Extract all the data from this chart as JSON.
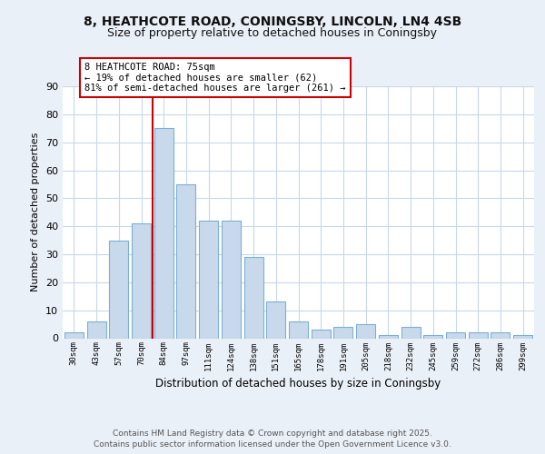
{
  "title1": "8, HEATHCOTE ROAD, CONINGSBY, LINCOLN, LN4 4SB",
  "title2": "Size of property relative to detached houses in Coningsby",
  "xlabel": "Distribution of detached houses by size in Coningsby",
  "ylabel": "Number of detached properties",
  "categories": [
    "30sqm",
    "43sqm",
    "57sqm",
    "70sqm",
    "84sqm",
    "97sqm",
    "111sqm",
    "124sqm",
    "138sqm",
    "151sqm",
    "165sqm",
    "178sqm",
    "191sqm",
    "205sqm",
    "218sqm",
    "232sqm",
    "245sqm",
    "259sqm",
    "272sqm",
    "286sqm",
    "299sqm"
  ],
  "values": [
    2,
    6,
    35,
    41,
    75,
    55,
    42,
    42,
    29,
    13,
    6,
    3,
    4,
    5,
    1,
    4,
    1,
    2,
    2,
    2,
    1
  ],
  "bar_color": "#c9d9ec",
  "bar_edgecolor": "#7bafd4",
  "bar_linewidth": 0.8,
  "redline_color": "#cc0000",
  "annotation_text": "8 HEATHCOTE ROAD: 75sqm\n← 19% of detached houses are smaller (62)\n81% of semi-detached houses are larger (261) →",
  "annotation_box_color": "#ffffff",
  "annotation_box_edgecolor": "#cc0000",
  "footer1": "Contains HM Land Registry data © Crown copyright and database right 2025.",
  "footer2": "Contains public sector information licensed under the Open Government Licence v3.0.",
  "ylim": [
    0,
    90
  ],
  "yticks": [
    0,
    10,
    20,
    30,
    40,
    50,
    60,
    70,
    80,
    90
  ],
  "background_color": "#eaf0f8",
  "plot_background": "#ffffff",
  "grid_color": "#c8d8e8",
  "title1_fontsize": 10,
  "title2_fontsize": 9
}
